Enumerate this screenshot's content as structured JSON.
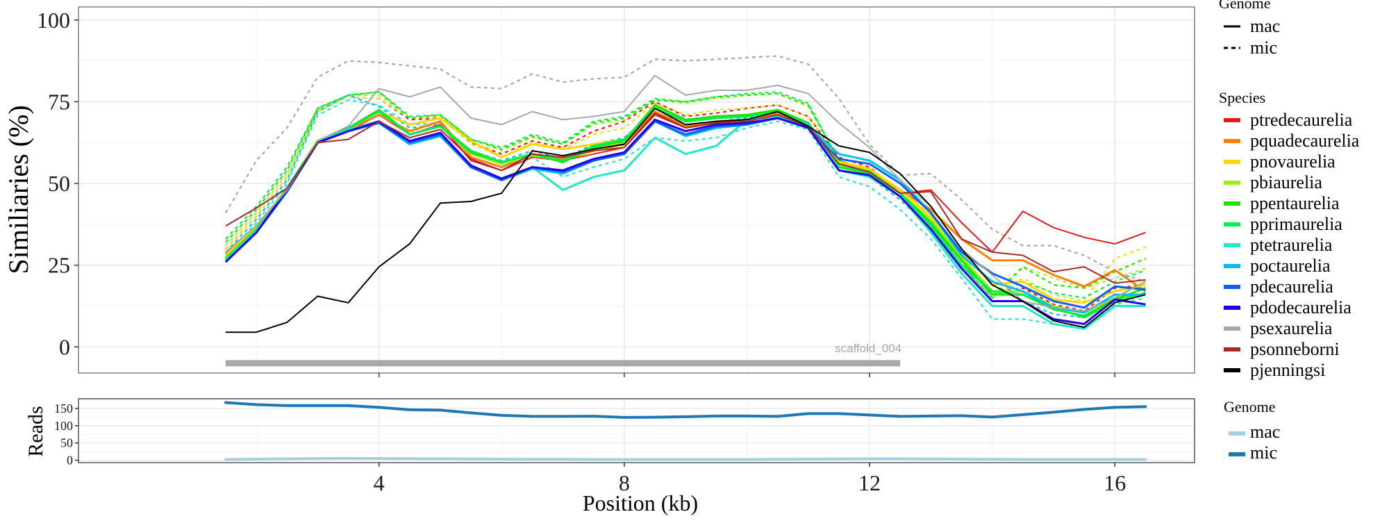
{
  "chart_data": [
    {
      "type": "line",
      "panel": "similarity",
      "xlabel": "Position (kb)",
      "ylabel": "Similiaries (%)",
      "xlim": [
        -0.9,
        17.3
      ],
      "ylim": [
        -8,
        104
      ],
      "x_ticks": [
        4,
        8,
        12,
        16
      ],
      "x_tick_labels": [
        "4",
        "8",
        "12",
        "16"
      ],
      "y_ticks": [
        0,
        25,
        50,
        75,
        100
      ],
      "y_tick_labels": [
        "0",
        "25",
        "50",
        "75",
        "100"
      ],
      "grid": true,
      "x": [
        1.5,
        2,
        2.5,
        3,
        3.5,
        4,
        4.5,
        5,
        5.5,
        6,
        6.5,
        7,
        7.5,
        8,
        8.5,
        9,
        9.5,
        10,
        10.5,
        11,
        11.5,
        12,
        12.5,
        13,
        13.5,
        14,
        14.5,
        15,
        15.5,
        16,
        16.5
      ],
      "annotation": {
        "text": "scaffold_004",
        "segment_kb": [
          1.5,
          12.5
        ],
        "y": -5,
        "color": "#a8a8a8"
      },
      "series": [
        {
          "species": "ptredecaurelia",
          "genome": "mac",
          "color": "#e41a1c",
          "values": [
            29,
            37,
            48,
            62.5,
            66,
            71,
            65,
            68,
            57,
            54,
            58,
            57,
            59,
            61,
            71,
            67,
            68.5,
            69,
            71,
            67.5,
            55,
            53,
            47,
            48,
            38,
            29,
            41.5,
            36.5,
            33.5,
            31.5,
            35
          ]
        },
        {
          "species": "pquadecaurelia",
          "genome": "mac",
          "color": "#ff7f00",
          "values": [
            28.5,
            37,
            48,
            63,
            66.5,
            71,
            66,
            69,
            58,
            55,
            59,
            57.5,
            60,
            62,
            72,
            67.5,
            69,
            69.5,
            71.5,
            68,
            56,
            54,
            48,
            42,
            33,
            26.5,
            26.5,
            22,
            18.5,
            23.5,
            17
          ]
        },
        {
          "species": "pnovaurelia",
          "genome": "mac",
          "color": "#ffd700",
          "values": [
            28,
            36.5,
            47.5,
            63,
            67,
            72,
            68,
            70,
            63,
            58,
            62,
            60.5,
            62,
            63.5,
            73,
            69,
            70,
            70.5,
            72,
            68.5,
            56.5,
            54.5,
            48,
            40,
            29,
            19,
            20,
            14.5,
            13.5,
            17,
            19
          ]
        },
        {
          "species": "pbiaurelia",
          "genome": "mac",
          "color": "#9ef01a",
          "values": [
            27.5,
            36,
            48.5,
            63,
            67,
            72,
            65,
            67.5,
            59,
            56,
            58.5,
            57,
            60,
            62.5,
            73.5,
            69,
            70,
            70.5,
            72,
            68.5,
            55.5,
            54,
            47,
            39,
            27.5,
            17,
            17,
            12.5,
            10.5,
            15,
            20
          ]
        },
        {
          "species": "ppentaurelia",
          "genome": "mac",
          "color": "#22e000",
          "values": [
            27,
            36,
            48.5,
            63,
            67,
            72.5,
            65,
            67.5,
            59.5,
            56.5,
            59,
            56.5,
            61,
            63,
            74,
            69.5,
            70.5,
            71,
            72.5,
            68.5,
            55,
            53,
            47,
            38,
            26.5,
            16,
            16,
            11.5,
            9.5,
            14.5,
            18
          ]
        },
        {
          "species": "pprimaurelia",
          "genome": "mac",
          "color": "#00f050",
          "values": [
            27,
            36,
            48.5,
            63,
            67,
            72,
            65,
            67.5,
            60,
            56.5,
            59,
            57,
            61.5,
            63.5,
            73,
            69,
            70,
            70.5,
            72,
            68,
            55,
            53.5,
            47,
            37,
            25,
            17,
            16,
            12,
            9,
            14,
            16.5
          ]
        },
        {
          "species": "ptetraurelia",
          "genome": "mac",
          "color": "#20e8c8",
          "values": [
            26.5,
            35.5,
            48,
            62.5,
            66.5,
            69,
            63,
            65,
            55.5,
            51.5,
            55,
            48,
            52,
            54,
            64,
            59,
            61.5,
            69.5,
            70.5,
            68,
            54,
            52,
            46,
            35,
            22.5,
            12.5,
            12.5,
            7,
            5.5,
            12.5,
            12.5
          ]
        },
        {
          "species": "poctaurelia",
          "genome": "mac",
          "color": "#00bfee",
          "values": [
            26,
            35,
            47.5,
            62.5,
            66,
            68.5,
            62,
            64.5,
            55,
            51,
            54.5,
            53,
            57,
            59,
            69,
            64.5,
            67,
            68,
            70,
            67.5,
            59,
            57,
            51,
            41,
            28,
            20,
            17,
            12,
            10.5,
            16,
            16
          ]
        },
        {
          "species": "pdecaurelia",
          "genome": "mac",
          "color": "#1060f0",
          "values": [
            26,
            35,
            47.5,
            62.5,
            66,
            68.5,
            62.5,
            65,
            55,
            51,
            55,
            53.5,
            57,
            59,
            69,
            65,
            67.5,
            68,
            70,
            67,
            57.5,
            56,
            50,
            41,
            29,
            22.5,
            18.5,
            14,
            12,
            18.5,
            17.5
          ]
        },
        {
          "species": "pdodecaurelia",
          "genome": "mac",
          "color": "#2200e8",
          "values": [
            26,
            35,
            48,
            62.5,
            66,
            69,
            63,
            65.5,
            55.5,
            51.5,
            55,
            54,
            57.5,
            59.5,
            69.5,
            66,
            68,
            68.5,
            70,
            67,
            54,
            52.5,
            46,
            36,
            24,
            14,
            14,
            8.5,
            7,
            14.5,
            13
          ]
        },
        {
          "species": "psexaurelia",
          "genome": "mac",
          "color": "#a8a8a8",
          "values": [
            29,
            37,
            48,
            63,
            67.5,
            79,
            76.5,
            79.5,
            70,
            68,
            72,
            69.5,
            70.5,
            72,
            83,
            77,
            78.5,
            78.5,
            80,
            77.5,
            68.5,
            61,
            51,
            43,
            30,
            22,
            14,
            12,
            11,
            15,
            20
          ]
        },
        {
          "species": "psonneborni",
          "genome": "mac",
          "color": "#a52a2a",
          "values": [
            37,
            42.5,
            48.5,
            62.5,
            63.5,
            69,
            64,
            66.5,
            57.5,
            54,
            59,
            58,
            60,
            61,
            71.5,
            67,
            68.5,
            69,
            71,
            67.5,
            56,
            53.5,
            47,
            47.5,
            33,
            29,
            28,
            23,
            24.5,
            19.5,
            20.5
          ]
        },
        {
          "species": "pjenningsi",
          "genome": "mac",
          "color": "#000000",
          "values": [
            4.5,
            4.5,
            7.5,
            15.5,
            13.5,
            24.5,
            31.5,
            44,
            44.5,
            47,
            60,
            58.5,
            60.5,
            62,
            73,
            68,
            69,
            69.5,
            72,
            67.5,
            61.5,
            59.5,
            53,
            43,
            30,
            19,
            14,
            8,
            6,
            13.5,
            16
          ]
        },
        {
          "species": "ptredecaurelia",
          "genome": "mic",
          "color": "#e41a1c",
          "values": [
            30,
            40,
            52,
            72,
            76.5,
            76,
            69.5,
            70,
            62.5,
            59,
            63,
            61,
            66,
            69,
            75,
            70.5,
            71.5,
            73,
            74,
            70.5,
            58,
            55,
            47,
            38,
            27,
            17,
            18,
            13,
            11,
            18,
            19
          ]
        },
        {
          "species": "pnovaurelia",
          "genome": "mic",
          "color": "#e8e020",
          "values": [
            30,
            40,
            52,
            72,
            76.5,
            76,
            70,
            70.5,
            62,
            58,
            62.5,
            60.5,
            65,
            67,
            74.5,
            71,
            72.5,
            73,
            74,
            70.5,
            57,
            54,
            47,
            38,
            27,
            16,
            21,
            16,
            14,
            27,
            30.5
          ]
        },
        {
          "species": "pbiaurelia",
          "genome": "mic",
          "color": "#b0f020",
          "values": [
            31,
            41,
            53,
            72.5,
            77,
            77,
            70,
            70.5,
            63.5,
            60,
            64,
            62,
            68,
            69.5,
            75.5,
            74.5,
            76,
            77,
            77.5,
            73.5,
            57,
            54,
            47,
            38,
            26,
            16,
            24.5,
            21,
            18,
            21,
            24
          ]
        },
        {
          "species": "ppentaurelia",
          "genome": "mic",
          "color": "#22e000",
          "values": [
            32,
            42,
            54,
            73,
            77,
            78,
            70,
            71,
            63.5,
            60.5,
            64.5,
            62,
            68.5,
            70,
            75.5,
            75,
            76.5,
            77,
            77.5,
            74,
            57,
            54,
            47,
            38,
            25,
            15,
            24.5,
            19,
            18,
            23,
            27
          ]
        },
        {
          "species": "pprimaurelia",
          "genome": "mic",
          "color": "#00f050",
          "values": [
            33,
            43,
            55,
            73,
            77,
            78,
            70.5,
            71,
            63.5,
            61,
            65,
            62.5,
            69,
            70.5,
            76,
            75,
            76.5,
            77.5,
            78,
            74.5,
            57,
            54,
            47,
            38,
            25,
            15,
            20,
            16.5,
            15,
            20,
            23.5
          ]
        },
        {
          "species": "ptetraurelia",
          "genome": "mic",
          "color": "#20e8c8",
          "values": [
            28,
            38,
            50,
            71,
            75.5,
            74,
            68,
            68.5,
            58,
            55,
            58,
            52,
            55,
            57.5,
            64,
            63,
            64,
            67,
            69,
            66.5,
            52,
            49,
            42,
            33,
            21,
            8.5,
            8.5,
            7,
            6,
            13,
            15
          ]
        },
        {
          "species": "poctaurelia",
          "genome": "mic",
          "color": "#00bfee",
          "values": [
            29,
            39,
            51,
            72,
            77,
            73.5,
            67,
            68,
            60,
            57,
            60,
            57.5,
            62,
            64,
            72,
            68,
            69,
            70,
            71.5,
            68,
            54,
            52,
            45,
            36,
            24,
            14,
            14,
            10,
            9,
            15,
            16
          ]
        },
        {
          "species": "psexaurelia",
          "genome": "mic",
          "color": "#a8a8a8",
          "values": [
            41,
            57,
            67,
            82.5,
            87.5,
            87,
            86,
            85,
            79.5,
            79,
            83.5,
            81,
            82,
            82.5,
            88,
            87.5,
            88,
            88.5,
            89,
            86.5,
            76,
            62,
            52.5,
            53,
            45,
            36,
            31,
            31,
            28,
            23,
            20
          ]
        }
      ],
      "legend_genome": {
        "title": "Genome",
        "items": [
          {
            "label": "mac",
            "linetype": "solid"
          },
          {
            "label": "mic",
            "linetype": "dashed"
          }
        ]
      },
      "legend_species": {
        "title": "Species",
        "items": [
          {
            "label": "ptredecaurelia",
            "color": "#e41a1c"
          },
          {
            "label": "pquadecaurelia",
            "color": "#ff7f00"
          },
          {
            "label": "pnovaurelia",
            "color": "#ffd700"
          },
          {
            "label": "pbiaurelia",
            "color": "#9ef01a"
          },
          {
            "label": "ppentaurelia",
            "color": "#22e000"
          },
          {
            "label": "pprimaurelia",
            "color": "#00f050"
          },
          {
            "label": "ptetraurelia",
            "color": "#20e8c8"
          },
          {
            "label": "poctaurelia",
            "color": "#00bfee"
          },
          {
            "label": "pdecaurelia",
            "color": "#1060f0"
          },
          {
            "label": "pdodecaurelia",
            "color": "#2200e8"
          },
          {
            "label": "psexaurelia",
            "color": "#a8a8a8"
          },
          {
            "label": "psonneborni",
            "color": "#a52a2a"
          },
          {
            "label": "pjenningsi",
            "color": "#000000"
          }
        ]
      }
    },
    {
      "type": "line",
      "panel": "reads",
      "xlabel": "Position (kb)",
      "ylabel": "Reads",
      "xlim": [
        -0.9,
        17.3
      ],
      "ylim": [
        -7,
        178
      ],
      "y_ticks": [
        0,
        50,
        100,
        150
      ],
      "y_tick_labels": [
        "0",
        "50",
        "100",
        "150"
      ],
      "grid": true,
      "x": [
        1.5,
        2,
        2.5,
        3,
        3.5,
        4,
        4.5,
        5,
        5.5,
        6,
        6.5,
        7,
        7.5,
        8,
        8.5,
        9,
        9.5,
        10,
        10.5,
        11,
        11.5,
        12,
        12.5,
        13,
        13.5,
        14,
        14.5,
        15,
        15.5,
        16,
        16.5
      ],
      "series": [
        {
          "name": "mac",
          "color": "#a6cee3",
          "values": [
            2,
            3,
            4,
            5,
            5.5,
            5,
            4.5,
            4,
            3.5,
            3,
            2.5,
            2.5,
            2,
            2,
            2,
            2,
            2,
            2,
            2.5,
            3,
            3.5,
            4,
            4,
            3.5,
            3,
            2.5,
            2,
            2,
            2,
            2,
            2
          ]
        },
        {
          "name": "mic",
          "color": "#1f78b4",
          "values": [
            167,
            161,
            158,
            158,
            158,
            153,
            146,
            145,
            137,
            130,
            127,
            127,
            127.5,
            124,
            124.5,
            126,
            128,
            128,
            127,
            135,
            135,
            131,
            127,
            128,
            129,
            125,
            132,
            139,
            147,
            153,
            155
          ]
        }
      ],
      "legend": {
        "title": "Genome",
        "items": [
          {
            "label": "mac",
            "color": "#a6cee3"
          },
          {
            "label": "mic",
            "color": "#1f78b4"
          }
        ]
      }
    }
  ]
}
